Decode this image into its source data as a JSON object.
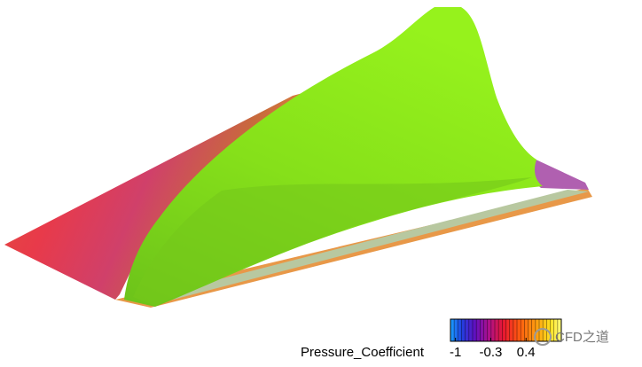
{
  "colorbar": {
    "label": "Pressure_Coefficient",
    "lim": [
      -1.1,
      1.1
    ],
    "ticks": [
      -1,
      -0.3,
      0.4
    ]
  },
  "watermark": "CFD之道"
}
